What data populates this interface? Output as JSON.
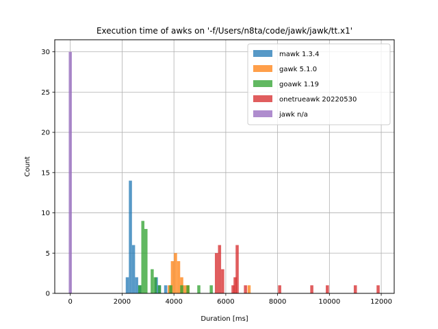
{
  "chart_data": {
    "type": "bar",
    "title": "Execution time of awks on '-f/Users/n8ta/code/jawk/jawk/tt.x1'",
    "xlabel": "Duration [ms]",
    "ylabel": "Count",
    "xlim": [
      -600,
      12500
    ],
    "ylim": [
      0,
      31.5
    ],
    "xticks": [
      0,
      2000,
      4000,
      6000,
      8000,
      10000,
      12000
    ],
    "yticks": [
      0,
      5,
      10,
      15,
      20,
      25,
      30
    ],
    "grid": true,
    "legend_position": "top-right",
    "bin_width_ms": 120,
    "series": [
      {
        "name": "mawk 1.3.4",
        "color": "#1f77b4",
        "bins": [
          [
            2200,
            2
          ],
          [
            2320,
            14
          ],
          [
            2440,
            6
          ],
          [
            2560,
            2
          ],
          [
            2680,
            1
          ],
          [
            3320,
            2
          ],
          [
            3440,
            1
          ],
          [
            3680,
            1
          ]
        ]
      },
      {
        "name": "gawk 5.1.0",
        "color": "#ff7f0e",
        "bins": [
          [
            3820,
            1
          ],
          [
            3940,
            4
          ],
          [
            4060,
            5
          ],
          [
            4180,
            4
          ],
          [
            4300,
            2
          ],
          [
            4420,
            1
          ],
          [
            4540,
            1
          ],
          [
            6900,
            1
          ]
        ]
      },
      {
        "name": "goawk 1.19",
        "color": "#2ca02c",
        "bins": [
          [
            2680,
            1
          ],
          [
            2800,
            9
          ],
          [
            2920,
            8
          ],
          [
            3160,
            3
          ],
          [
            3280,
            2
          ],
          [
            3440,
            1
          ],
          [
            3880,
            1
          ],
          [
            4300,
            1
          ],
          [
            4540,
            1
          ],
          [
            4960,
            1
          ],
          [
            5440,
            1
          ]
        ]
      },
      {
        "name": "onetrueawk 20220530",
        "color": "#d62728",
        "bins": [
          [
            5640,
            5
          ],
          [
            5760,
            6
          ],
          [
            5880,
            3
          ],
          [
            6280,
            1
          ],
          [
            6440,
            6
          ],
          [
            8080,
            1
          ],
          [
            9320,
            1
          ],
          [
            9920,
            1
          ],
          [
            11000,
            1
          ],
          [
            11880,
            1
          ],
          [
            6360,
            2
          ],
          [
            6760,
            1
          ]
        ]
      },
      {
        "name": "jawk n/a",
        "color": "#9467bd",
        "bins": [
          [
            0,
            30
          ]
        ]
      }
    ]
  }
}
